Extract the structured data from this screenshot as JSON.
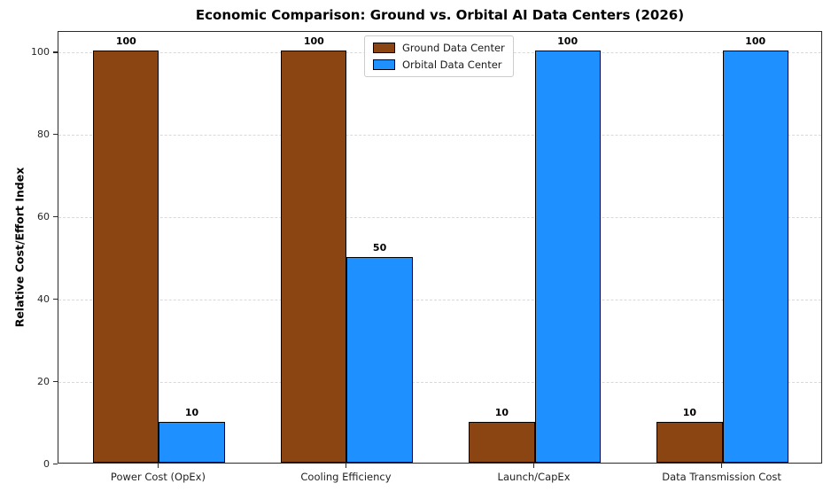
{
  "figure": {
    "title": "Economic Comparison: Ground vs. Orbital AI Data Centers (2026)"
  },
  "chart_data": {
    "type": "bar",
    "title": "Economic Comparison: Ground vs. Orbital AI Data Centers (2026)",
    "xlabel": "",
    "ylabel": "Relative Cost/Effort Index",
    "categories": [
      "Power Cost (OpEx)",
      "Cooling Efficiency",
      "Launch/CapEx",
      "Data Transmission Cost"
    ],
    "series": [
      {
        "name": "Ground Data Center",
        "color": "#8B4513",
        "values": [
          100,
          100,
          10,
          10
        ]
      },
      {
        "name": "Orbital Data Center",
        "color": "#1E90FF",
        "values": [
          10,
          50,
          100,
          100
        ]
      }
    ],
    "bar_edge_color": "#000000",
    "bar_value_labels": [
      [
        "100",
        "100",
        "10",
        "10"
      ],
      [
        "10",
        "50",
        "100",
        "100"
      ]
    ],
    "ylim": [
      0,
      105
    ],
    "yticks": [
      0,
      20,
      40,
      60,
      80,
      100
    ],
    "grid": "horizontal-dashed",
    "grid_color": "#d9d9d9",
    "legend_position": "upper-center",
    "legend_entries": [
      "Ground Data Center",
      "Orbital Data Center"
    ]
  }
}
